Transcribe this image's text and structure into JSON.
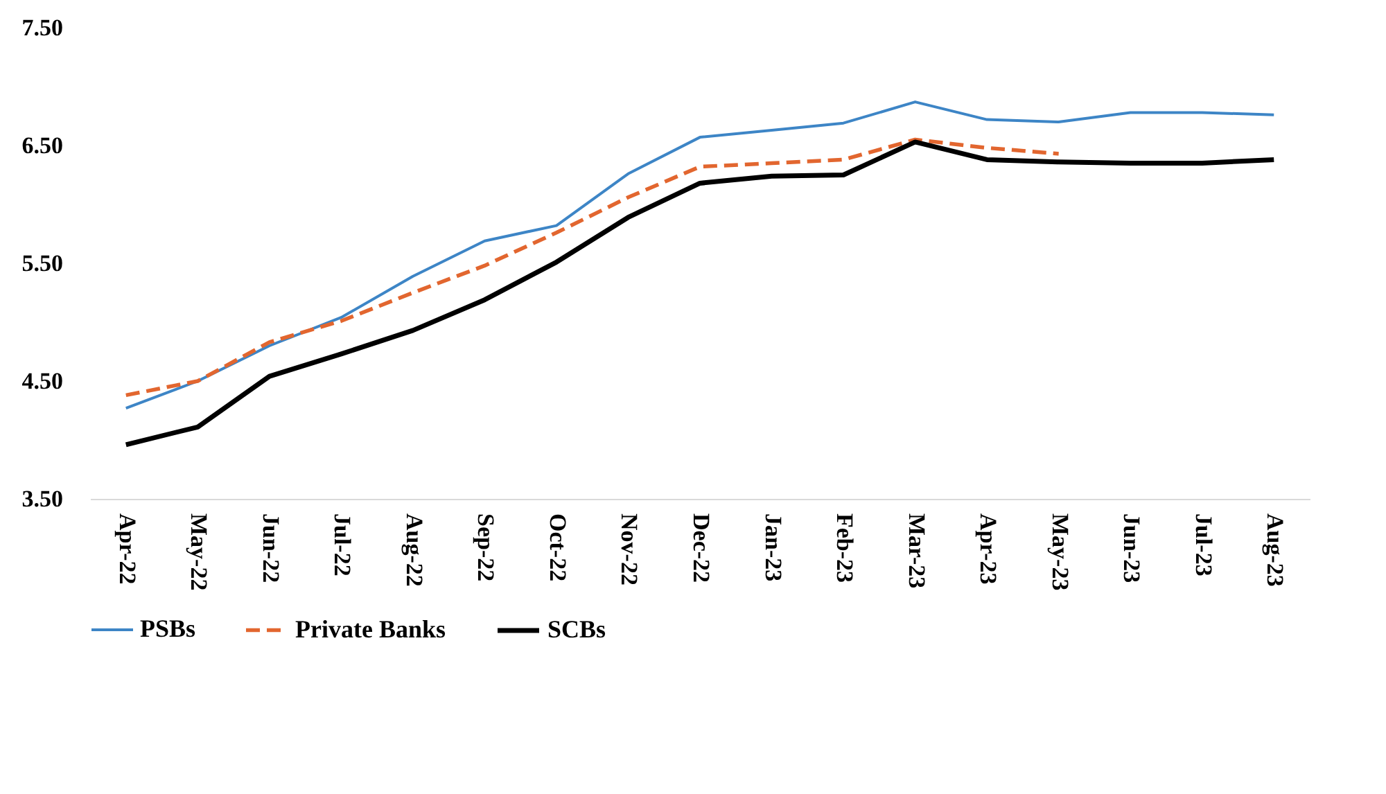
{
  "chart_data": {
    "type": "line",
    "categories": [
      "Apr-22",
      "May-22",
      "Jun-22",
      "Jul-22",
      "Aug-22",
      "Sep-22",
      "Oct-22",
      "Nov-22",
      "Dec-22",
      "Jan-23",
      "Feb-23",
      "Mar-23",
      "Apr-23",
      "May-23",
      "Jun-23",
      "Jul-23",
      "Aug-23"
    ],
    "series": [
      {
        "name": "PSBs",
        "color": "#3d85c6",
        "line_style": "solid",
        "values": [
          4.27,
          4.5,
          4.8,
          5.04,
          5.39,
          5.69,
          5.82,
          6.26,
          6.57,
          6.63,
          6.69,
          6.87,
          6.72,
          6.7,
          6.78,
          6.78,
          6.76
        ]
      },
      {
        "name": "Private Banks",
        "color": "#e2662f",
        "line_style": "dashed",
        "values": [
          4.38,
          4.5,
          4.83,
          5.01,
          5.25,
          5.48,
          5.76,
          6.06,
          6.32,
          6.35,
          6.38,
          6.55,
          6.48,
          6.43,
          null,
          null,
          null
        ]
      },
      {
        "name": "SCBs",
        "color": "#000000",
        "line_style": "solid",
        "values": [
          3.96,
          4.11,
          4.54,
          4.73,
          4.93,
          5.19,
          5.51,
          5.89,
          6.18,
          6.24,
          6.25,
          6.53,
          6.38,
          6.36,
          6.35,
          6.35,
          6.38
        ]
      }
    ],
    "ylim": [
      3.5,
      7.5
    ],
    "yticks": [
      {
        "value": 3.5,
        "label": "3.50"
      },
      {
        "value": 4.5,
        "label": "4.50"
      },
      {
        "value": 5.5,
        "label": "5.50"
      },
      {
        "value": 6.5,
        "label": "6.50"
      },
      {
        "value": 7.5,
        "label": "7.50"
      }
    ],
    "grid": false,
    "legend": "bottom",
    "marker": "none"
  }
}
